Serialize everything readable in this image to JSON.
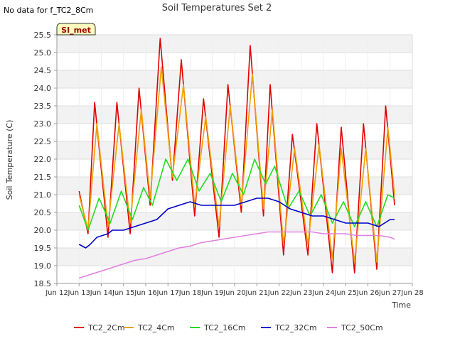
{
  "header": {
    "no_data_note": "No data for f_TC2_8Cm"
  },
  "badge": {
    "label": "SI_met",
    "bg": "#ffffc0",
    "border": "#333333",
    "text_color": "#a00000"
  },
  "chart_data": {
    "type": "line",
    "title": "Soil Temperatures Set 2",
    "xlabel": "Time",
    "ylabel": "Soil Temperature (C)",
    "xlim": [
      12.0,
      28.0
    ],
    "ylim": [
      18.5,
      25.5
    ],
    "x_ticks": [
      12,
      13,
      14,
      15,
      16,
      17,
      18,
      19,
      20,
      21,
      22,
      23,
      24,
      25,
      26,
      27,
      28
    ],
    "x_tick_labels": [
      "Jun 12",
      "Jun 13",
      "Jun 14",
      "Jun 15",
      "Jun 16",
      "Jun 17",
      "Jun 18",
      "Jun 19",
      "Jun 20",
      "Jun 21",
      "Jun 22",
      "Jun 23",
      "Jun 24",
      "Jun 25",
      "Jun 26",
      "Jun 27",
      "Jun 28"
    ],
    "y_ticks": [
      18.5,
      19.0,
      19.5,
      20.0,
      20.5,
      21.0,
      21.5,
      22.0,
      22.5,
      23.0,
      23.5,
      24.0,
      24.5,
      25.0,
      25.5
    ],
    "y_tick_labels": [
      "18.5",
      "19.0",
      "19.5",
      "20.0",
      "20.5",
      "21.0",
      "21.5",
      "22.0",
      "22.5",
      "23.0",
      "23.5",
      "24.0",
      "24.5",
      "25.0",
      "25.5"
    ],
    "grid": true,
    "legend_position": "bottom",
    "series": [
      {
        "name": "TC2_2Cm",
        "color": "#e00000",
        "points": [
          [
            13.0,
            21.1
          ],
          [
            13.4,
            19.9
          ],
          [
            13.7,
            23.6
          ],
          [
            14.3,
            19.8
          ],
          [
            14.7,
            23.6
          ],
          [
            15.3,
            19.9
          ],
          [
            15.7,
            24.0
          ],
          [
            16.2,
            20.7
          ],
          [
            16.65,
            25.4
          ],
          [
            17.2,
            21.4
          ],
          [
            17.6,
            24.8
          ],
          [
            18.2,
            20.4
          ],
          [
            18.6,
            23.7
          ],
          [
            19.3,
            19.8
          ],
          [
            19.7,
            24.1
          ],
          [
            20.3,
            20.5
          ],
          [
            20.7,
            25.2
          ],
          [
            21.3,
            20.4
          ],
          [
            21.6,
            24.1
          ],
          [
            22.2,
            19.3
          ],
          [
            22.6,
            22.7
          ],
          [
            23.3,
            19.3
          ],
          [
            23.7,
            23.0
          ],
          [
            24.4,
            18.8
          ],
          [
            24.8,
            22.9
          ],
          [
            25.4,
            18.8
          ],
          [
            25.8,
            23.0
          ],
          [
            26.4,
            18.9
          ],
          [
            26.8,
            23.5
          ],
          [
            27.2,
            20.7
          ]
        ]
      },
      {
        "name": "TC2_4Cm",
        "color": "#f0a000",
        "points": [
          [
            13.0,
            21.0
          ],
          [
            13.4,
            20.0
          ],
          [
            13.8,
            23.0
          ],
          [
            14.3,
            20.1
          ],
          [
            14.8,
            23.0
          ],
          [
            15.3,
            20.2
          ],
          [
            15.8,
            23.4
          ],
          [
            16.2,
            20.9
          ],
          [
            16.7,
            24.6
          ],
          [
            17.2,
            21.5
          ],
          [
            17.7,
            24.1
          ],
          [
            18.2,
            20.7
          ],
          [
            18.7,
            23.2
          ],
          [
            19.3,
            20.1
          ],
          [
            19.8,
            23.5
          ],
          [
            20.3,
            20.7
          ],
          [
            20.8,
            24.4
          ],
          [
            21.3,
            20.6
          ],
          [
            21.7,
            23.4
          ],
          [
            22.2,
            19.6
          ],
          [
            22.7,
            22.3
          ],
          [
            23.3,
            19.6
          ],
          [
            23.8,
            22.4
          ],
          [
            24.4,
            19.2
          ],
          [
            24.8,
            22.3
          ],
          [
            25.4,
            19.1
          ],
          [
            25.9,
            22.3
          ],
          [
            26.4,
            19.1
          ],
          [
            26.9,
            22.9
          ],
          [
            27.2,
            21.0
          ]
        ]
      },
      {
        "name": "TC2_16Cm",
        "color": "#22dd22",
        "points": [
          [
            13.0,
            20.7
          ],
          [
            13.4,
            20.0
          ],
          [
            13.9,
            20.9
          ],
          [
            14.4,
            20.2
          ],
          [
            14.9,
            21.1
          ],
          [
            15.4,
            20.3
          ],
          [
            15.9,
            21.2
          ],
          [
            16.3,
            20.7
          ],
          [
            16.9,
            22.0
          ],
          [
            17.4,
            21.4
          ],
          [
            17.9,
            22.0
          ],
          [
            18.4,
            21.1
          ],
          [
            18.9,
            21.6
          ],
          [
            19.4,
            20.8
          ],
          [
            19.9,
            21.6
          ],
          [
            20.4,
            21.0
          ],
          [
            20.9,
            22.0
          ],
          [
            21.4,
            21.3
          ],
          [
            21.8,
            21.8
          ],
          [
            22.4,
            20.6
          ],
          [
            22.9,
            21.1
          ],
          [
            23.4,
            20.4
          ],
          [
            23.9,
            21.0
          ],
          [
            24.4,
            20.2
          ],
          [
            24.9,
            20.8
          ],
          [
            25.4,
            20.1
          ],
          [
            25.9,
            20.8
          ],
          [
            26.4,
            20.1
          ],
          [
            26.9,
            21.0
          ],
          [
            27.2,
            20.9
          ]
        ]
      },
      {
        "name": "TC2_32Cm",
        "color": "#0000cc",
        "points": [
          [
            13.0,
            19.6
          ],
          [
            13.3,
            19.5
          ],
          [
            13.5,
            19.6
          ],
          [
            13.8,
            19.8
          ],
          [
            14.3,
            19.9
          ],
          [
            14.5,
            20.0
          ],
          [
            15.0,
            20.0
          ],
          [
            15.5,
            20.1
          ],
          [
            16.0,
            20.2
          ],
          [
            16.5,
            20.3
          ],
          [
            17.0,
            20.6
          ],
          [
            17.5,
            20.7
          ],
          [
            18.0,
            20.8
          ],
          [
            18.5,
            20.7
          ],
          [
            19.0,
            20.7
          ],
          [
            19.5,
            20.7
          ],
          [
            20.0,
            20.7
          ],
          [
            20.5,
            20.8
          ],
          [
            21.0,
            20.9
          ],
          [
            21.5,
            20.9
          ],
          [
            22.0,
            20.8
          ],
          [
            22.5,
            20.6
          ],
          [
            23.0,
            20.5
          ],
          [
            23.5,
            20.4
          ],
          [
            24.0,
            20.4
          ],
          [
            24.5,
            20.3
          ],
          [
            25.0,
            20.2
          ],
          [
            25.5,
            20.2
          ],
          [
            26.0,
            20.2
          ],
          [
            26.5,
            20.1
          ],
          [
            27.0,
            20.3
          ],
          [
            27.2,
            20.3
          ]
        ]
      },
      {
        "name": "TC2_50Cm",
        "color": "#e080e0",
        "points": [
          [
            13.0,
            18.65
          ],
          [
            13.5,
            18.75
          ],
          [
            14.0,
            18.85
          ],
          [
            14.5,
            18.95
          ],
          [
            15.0,
            19.05
          ],
          [
            15.5,
            19.15
          ],
          [
            16.0,
            19.2
          ],
          [
            16.5,
            19.3
          ],
          [
            17.0,
            19.4
          ],
          [
            17.5,
            19.5
          ],
          [
            18.0,
            19.55
          ],
          [
            18.5,
            19.65
          ],
          [
            19.0,
            19.7
          ],
          [
            19.5,
            19.75
          ],
          [
            20.0,
            19.8
          ],
          [
            20.5,
            19.85
          ],
          [
            21.0,
            19.9
          ],
          [
            21.5,
            19.95
          ],
          [
            22.0,
            19.95
          ],
          [
            22.5,
            19.95
          ],
          [
            23.0,
            19.95
          ],
          [
            23.5,
            19.95
          ],
          [
            24.0,
            19.9
          ],
          [
            24.5,
            19.9
          ],
          [
            25.0,
            19.9
          ],
          [
            25.5,
            19.85
          ],
          [
            26.0,
            19.85
          ],
          [
            26.5,
            19.85
          ],
          [
            27.0,
            19.8
          ],
          [
            27.2,
            19.75
          ]
        ]
      }
    ]
  }
}
